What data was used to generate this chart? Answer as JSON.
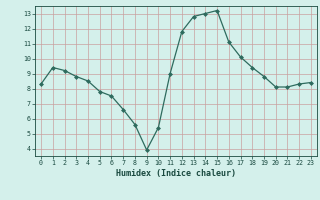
{
  "x": [
    0,
    1,
    2,
    3,
    4,
    5,
    6,
    7,
    8,
    9,
    10,
    11,
    12,
    13,
    14,
    15,
    16,
    17,
    18,
    19,
    20,
    21,
    22,
    23
  ],
  "y": [
    8.3,
    9.4,
    9.2,
    8.8,
    8.5,
    7.8,
    7.5,
    6.6,
    5.6,
    3.9,
    5.4,
    9.0,
    11.8,
    12.8,
    13.0,
    13.2,
    11.1,
    10.1,
    9.4,
    8.8,
    8.1,
    8.1,
    8.3,
    8.4
  ],
  "xlabel": "Humidex (Indice chaleur)",
  "ylim": [
    3.5,
    13.5
  ],
  "xlim": [
    -0.5,
    23.5
  ],
  "yticks": [
    4,
    5,
    6,
    7,
    8,
    9,
    10,
    11,
    12,
    13
  ],
  "xticks": [
    0,
    1,
    2,
    3,
    4,
    5,
    6,
    7,
    8,
    9,
    10,
    11,
    12,
    13,
    14,
    15,
    16,
    17,
    18,
    19,
    20,
    21,
    22,
    23
  ],
  "line_color": "#2e6b5e",
  "marker_color": "#2e6b5e",
  "bg_color": "#d4f0eb",
  "grid_color": "#c9a0a0",
  "axis_label_color": "#1a4a40",
  "tick_color": "#1a4a40"
}
